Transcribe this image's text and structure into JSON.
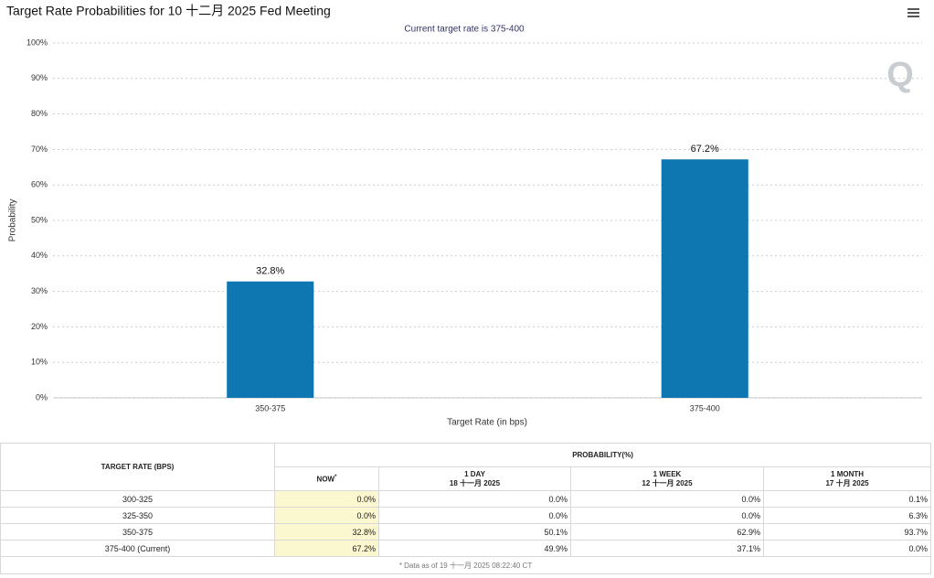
{
  "chart_data": {
    "type": "bar",
    "title": "Target Rate Probabilities for 10 十二月 2025 Fed Meeting",
    "subtitle": "Current target rate is 375-400",
    "x_label": "Target Rate (in bps)",
    "y_label": "Probability",
    "categories": [
      "350-375",
      "375-400"
    ],
    "values": [
      32.8,
      67.2
    ],
    "value_labels": [
      "32.8%",
      "67.2%"
    ],
    "color": "#0e76b0",
    "ylim": [
      0,
      100
    ],
    "yticks": [
      {
        "value": 0,
        "label": "0%"
      },
      {
        "value": 10,
        "label": "10%"
      },
      {
        "value": 20,
        "label": "20%"
      },
      {
        "value": 30,
        "label": "30%"
      },
      {
        "value": 40,
        "label": "40%"
      },
      {
        "value": 50,
        "label": "50%"
      },
      {
        "value": 60,
        "label": "60%"
      },
      {
        "value": 70,
        "label": "70%"
      },
      {
        "value": 80,
        "label": "80%"
      },
      {
        "value": 90,
        "label": "90%"
      },
      {
        "value": 100,
        "label": "100%"
      }
    ],
    "grid": true
  },
  "table": {
    "rate_header": "TARGET RATE (BPS)",
    "prob_header": "PROBABILITY(%)",
    "columns": [
      {
        "label": "NOW",
        "note": "*"
      },
      {
        "label": "1 DAY",
        "date": "18 十一月 2025"
      },
      {
        "label": "1 WEEK",
        "date": "12 十一月 2025"
      },
      {
        "label": "1 MONTH",
        "date": "17 十月 2025"
      }
    ],
    "rows": [
      [
        "300-325",
        "0.0%",
        "0.0%",
        "0.0%",
        "0.1%"
      ],
      [
        "325-350",
        "0.0%",
        "0.0%",
        "0.0%",
        "6.3%"
      ],
      [
        "350-375",
        "32.8%",
        "50.1%",
        "62.9%",
        "93.7%"
      ],
      [
        "375-400 (Current)",
        "67.2%",
        "49.9%",
        "37.1%",
        "0.0%"
      ]
    ],
    "footnote": "* Data as of 19 十一月 2025 08:22:40 CT"
  }
}
